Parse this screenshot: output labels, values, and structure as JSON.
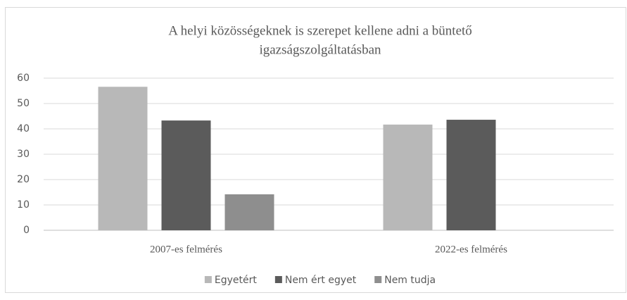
{
  "chart_data": {
    "type": "bar",
    "title": [
      "A helyi közösségeknek is szerepet kellene adni a büntető",
      "igazságszolgáltatásban"
    ],
    "categories": [
      "2007-es felmérés",
      "2022-es felmérés"
    ],
    "series": [
      {
        "name": "Egyetért",
        "color": "#b8b8b8",
        "values": [
          56.6,
          41.7
        ]
      },
      {
        "name": "Nem ért egyet",
        "color": "#5b5b5b",
        "values": [
          43.3,
          43.6
        ]
      },
      {
        "name": "Nem tudja",
        "color": "#8e8e8e",
        "values": [
          14.2,
          null
        ]
      }
    ],
    "ylim": [
      0,
      60
    ],
    "yticks": [
      0,
      10,
      20,
      30,
      40,
      50,
      60
    ],
    "grid": true,
    "legend": "bottom"
  }
}
